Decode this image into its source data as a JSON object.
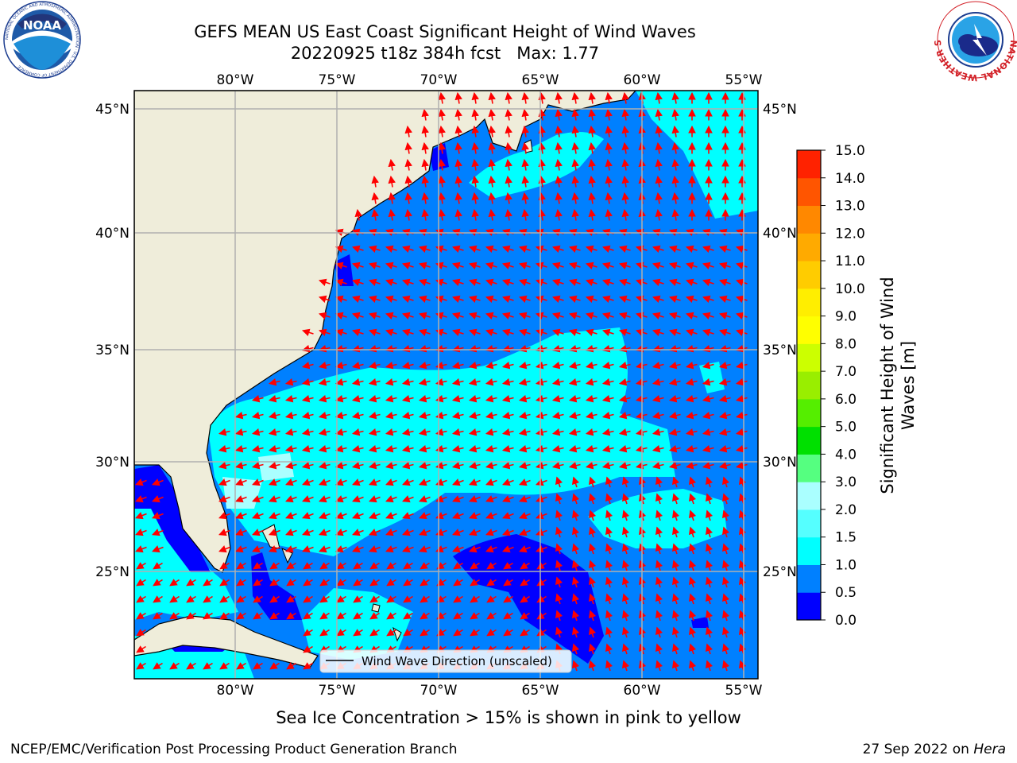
{
  "title": {
    "line1": "GEFS MEAN US East Coast Significant Height of Wind Waves",
    "line2": "20220925 t18z 384h fcst   Max: 1.77"
  },
  "logos": {
    "left": {
      "icon": "noaa-logo",
      "text": "NOAA",
      "ring_text": "NATIONAL OCEANIC AND ATMOSPHERIC ADMINISTRATION · U.S. DEPARTMENT OF COMMERCE"
    },
    "right": {
      "icon": "nws-logo",
      "ring_text": "NATIONAL WEATHER SERVICE"
    }
  },
  "map": {
    "lon_labels": [
      "80°W",
      "75°W",
      "70°W",
      "65°W",
      "60°W",
      "55°W"
    ],
    "lat_labels": [
      "45°N",
      "40°N",
      "35°N",
      "30°N",
      "25°N"
    ],
    "legend_label": "Wind Wave Direction (unscaled)",
    "colors": {
      "land": "#efedda",
      "coast": "#000000",
      "grid": "#b0b0b0",
      "arrow": "#ff0000"
    }
  },
  "colorbar": {
    "label_line1": "Significant Height of Wind",
    "label_line2": "Waves [m]",
    "ticks": [
      "0.0",
      "0.5",
      "1.0",
      "1.5",
      "2.0",
      "3.0",
      "4.0",
      "5.0",
      "6.0",
      "7.0",
      "8.0",
      "9.0",
      "10.0",
      "11.0",
      "12.0",
      "13.0",
      "14.0",
      "15.0"
    ],
    "colors": [
      "#0000ff",
      "#0080ff",
      "#00ffff",
      "#55ffff",
      "#aaffff",
      "#55ff80",
      "#00e000",
      "#55ee00",
      "#99ee00",
      "#ccff00",
      "#ffff00",
      "#ffee00",
      "#ffcc00",
      "#ffaa00",
      "#ff8800",
      "#ff5500",
      "#ff2200"
    ]
  },
  "ice_note": "Sea Ice Concentration > 15% is shown in pink to yellow",
  "footer": {
    "left": "NCEP/EMC/Verification Post Processing Product Generation Branch",
    "date": "27 Sep 2022 on ",
    "host": "Hera"
  }
}
